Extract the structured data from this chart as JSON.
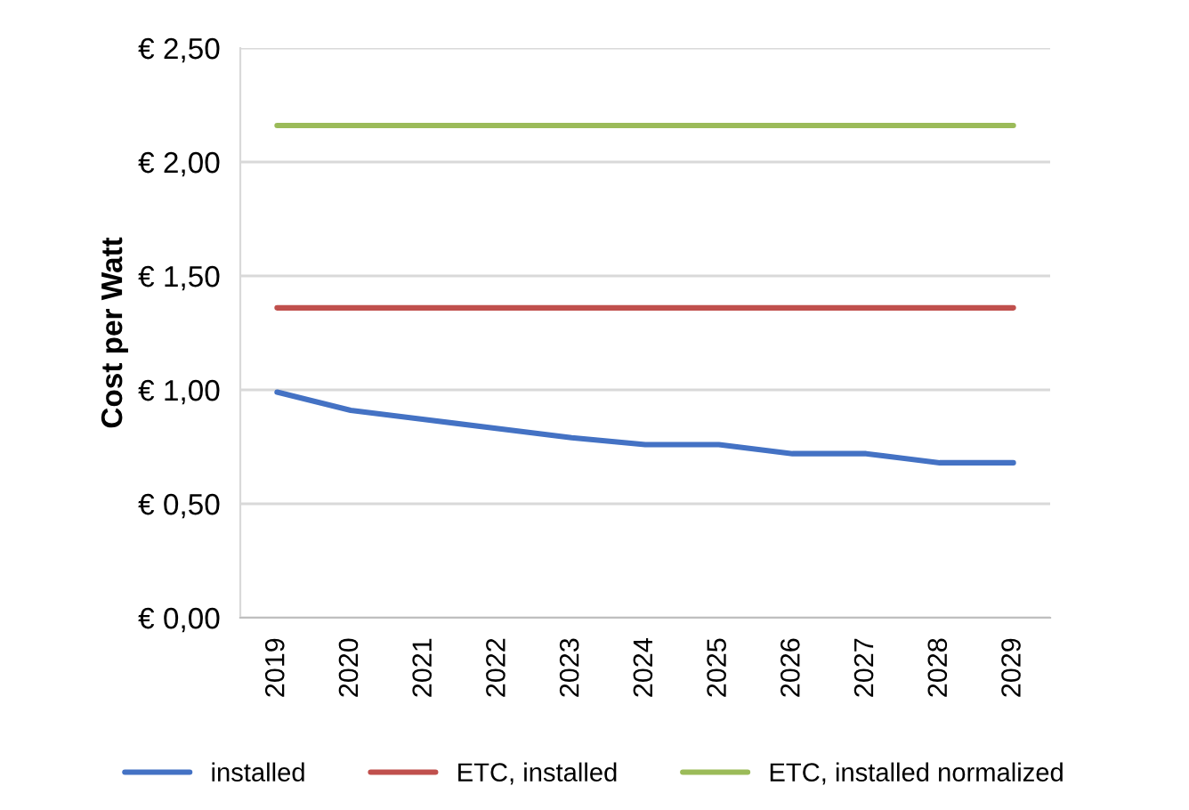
{
  "chart_data": {
    "type": "line",
    "ylabel": "Cost per Watt",
    "categories": [
      "2019",
      "2020",
      "2021",
      "2022",
      "2023",
      "2024",
      "2025",
      "2026",
      "2027",
      "2028",
      "2029"
    ],
    "series": [
      {
        "name": "installed",
        "color": "#4472c4",
        "values": [
          0.99,
          0.91,
          0.87,
          0.83,
          0.79,
          0.76,
          0.76,
          0.72,
          0.72,
          0.68,
          0.68
        ]
      },
      {
        "name": "ETC, installed",
        "color": "#c0504d",
        "values": [
          1.36,
          1.36,
          1.36,
          1.36,
          1.36,
          1.36,
          1.36,
          1.36,
          1.36,
          1.36,
          1.36
        ]
      },
      {
        "name": "ETC, installed normalized",
        "color": "#9bbb59",
        "values": [
          2.16,
          2.16,
          2.16,
          2.16,
          2.16,
          2.16,
          2.16,
          2.16,
          2.16,
          2.16,
          2.16
        ]
      }
    ],
    "ylim": [
      0,
      2.5
    ],
    "yticks": [
      {
        "value": 0,
        "label": "€ 0,00"
      },
      {
        "value": 0.5,
        "label": "€ 0,50"
      },
      {
        "value": 1,
        "label": "€ 1,00"
      },
      {
        "value": 1.5,
        "label": "€ 1,50"
      },
      {
        "value": 2,
        "label": "€ 2,00"
      },
      {
        "value": 2.5,
        "label": "€ 2,50"
      }
    ],
    "grid": "y",
    "legend": "bottom",
    "marker": "none",
    "line_style": "solid"
  }
}
